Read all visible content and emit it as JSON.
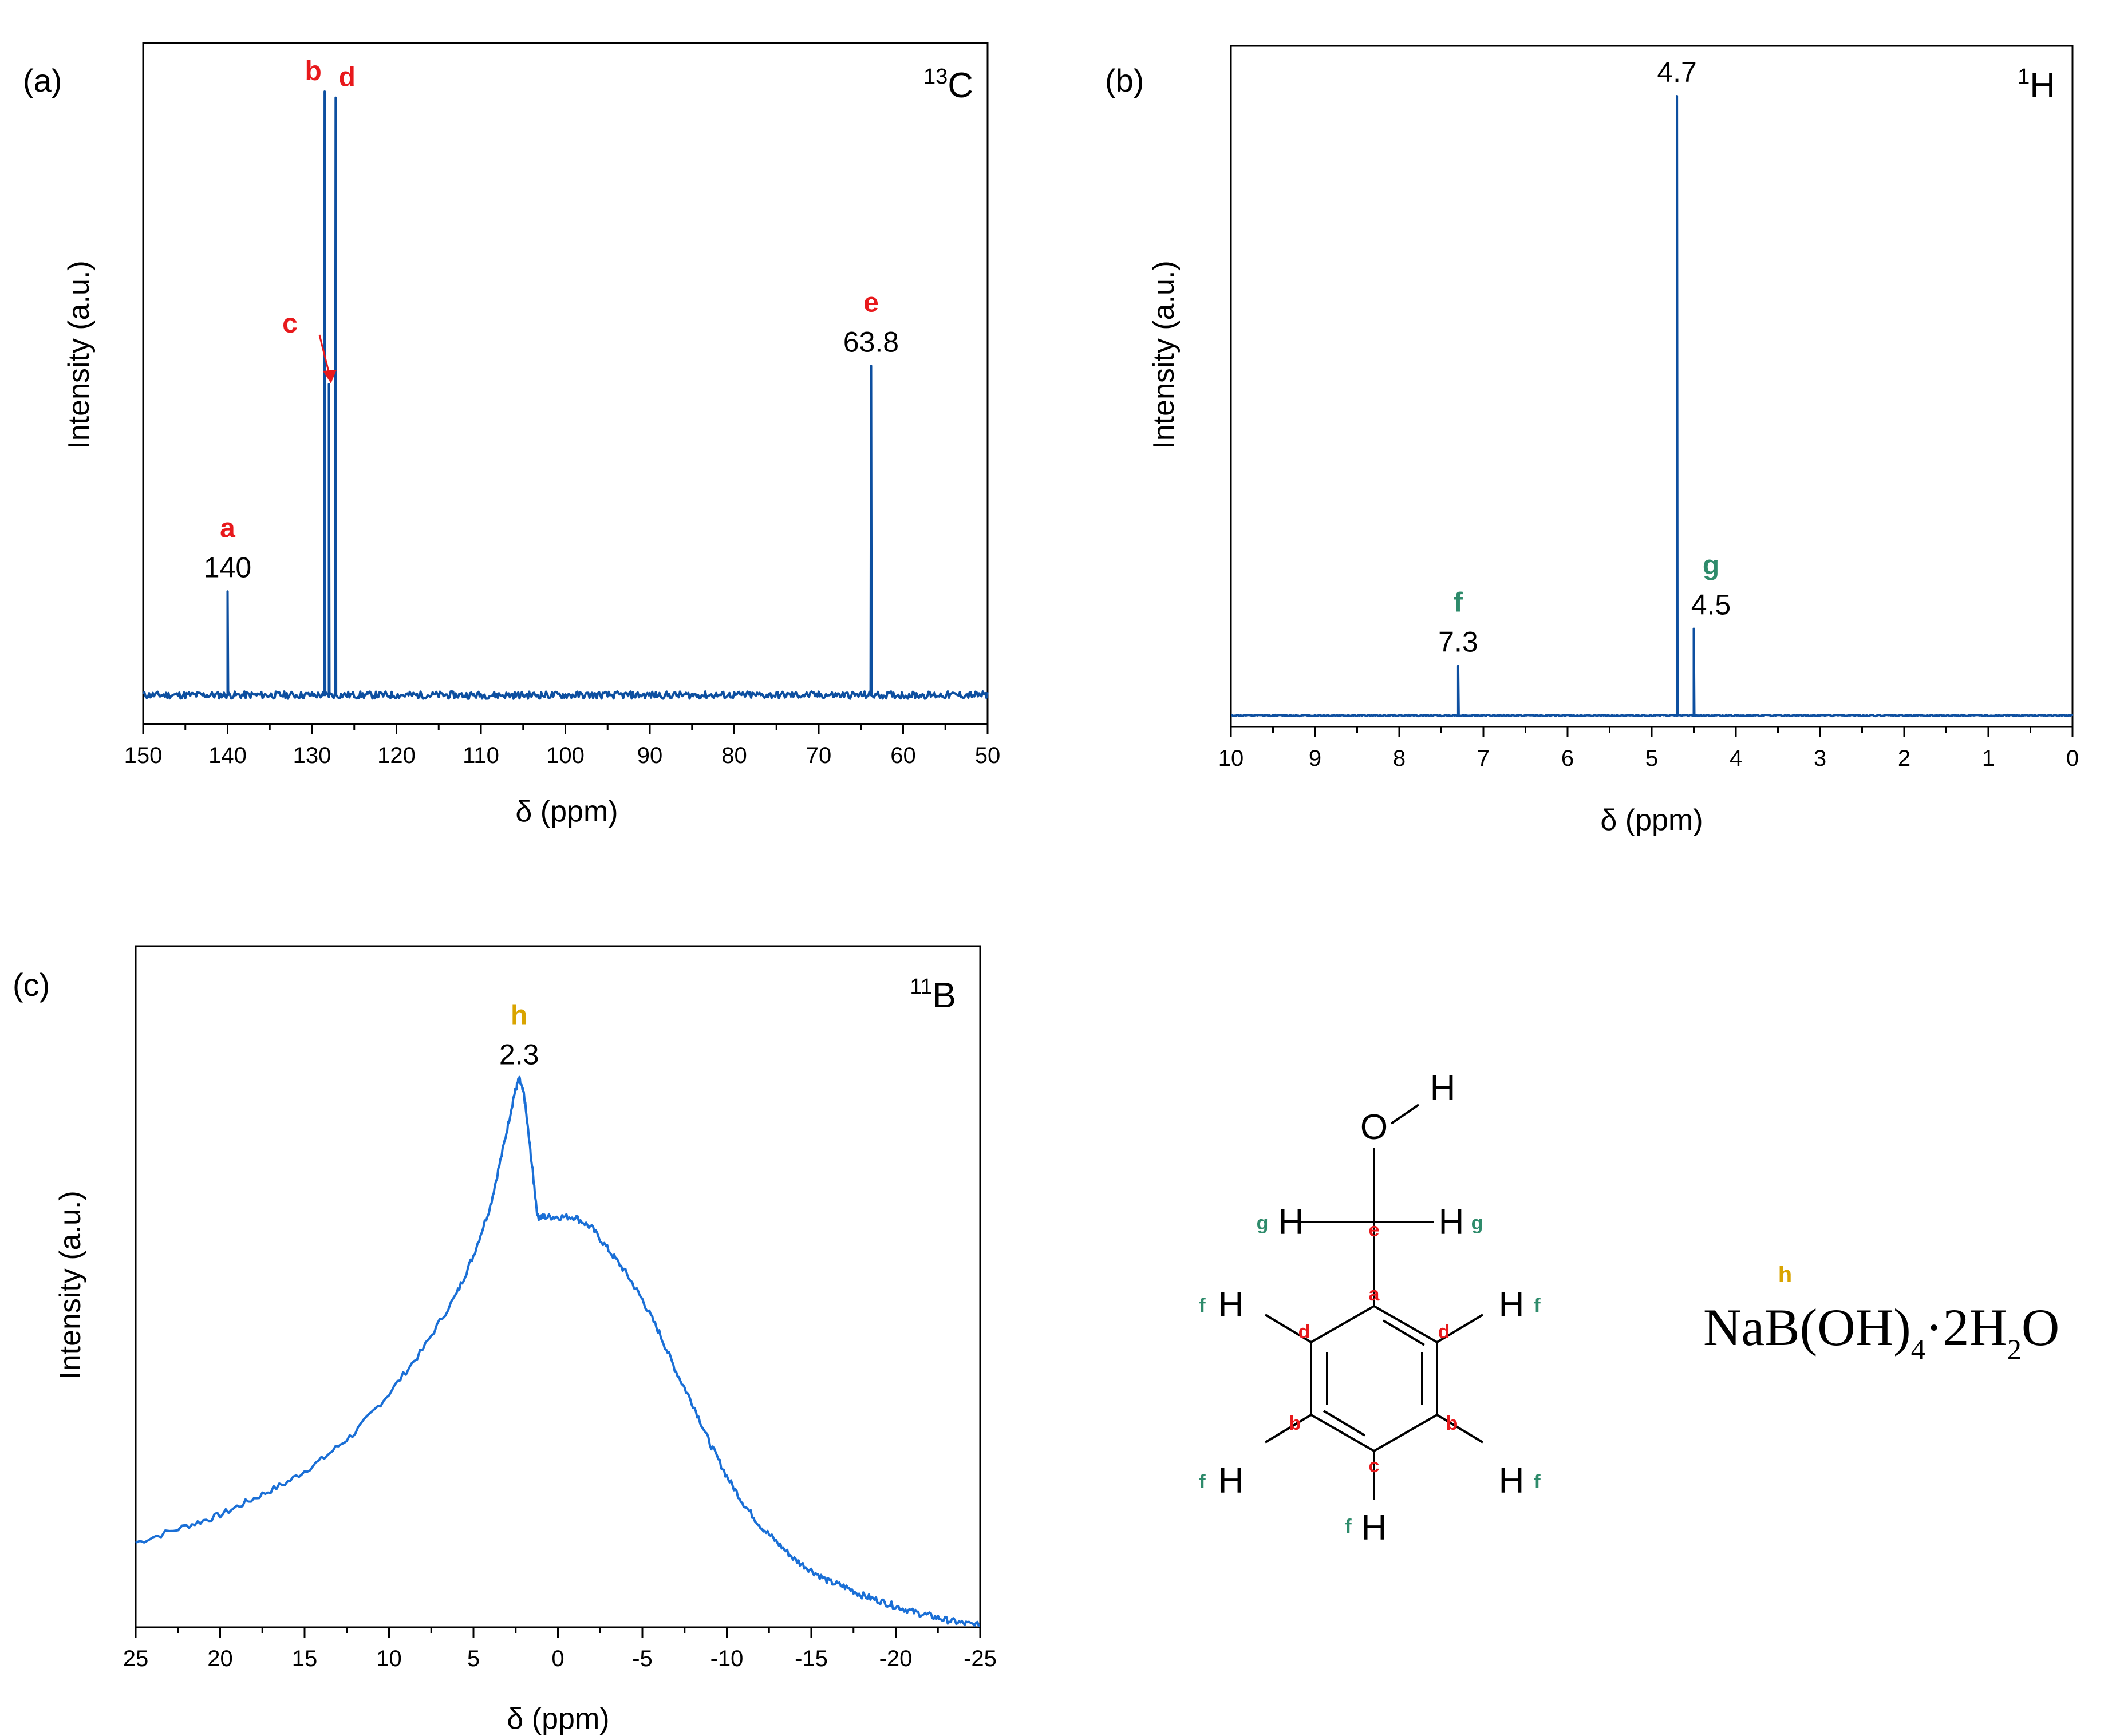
{
  "colors": {
    "line_dark": "#0d4fa0",
    "line_light": "#1a6fd6",
    "red": "#e8191c",
    "green": "#2e8b6b",
    "gold": "#d9a400"
  },
  "chart_data": [
    {
      "type": "line",
      "panel": "(a)",
      "nucleus": {
        "mass": "13",
        "element": "C"
      },
      "xlabel": "δ (ppm)",
      "ylabel": "Intensity (a.u.)",
      "xlim": [
        150,
        50
      ],
      "ylim": [
        0,
        1
      ],
      "xticks": [
        "150",
        "140",
        "130",
        "120",
        "110",
        "100",
        "90",
        "80",
        "70",
        "60",
        "50"
      ],
      "baseline": 0.01,
      "peaks": [
        {
          "x": 140.0,
          "height": 0.18,
          "letter": "a",
          "value": "140"
        },
        {
          "x": 128.5,
          "height": 1.0,
          "letter": "b",
          "value": ""
        },
        {
          "x": 128.0,
          "height": 0.52,
          "letter": "c",
          "value": ""
        },
        {
          "x": 127.2,
          "height": 0.99,
          "letter": "d",
          "value": ""
        },
        {
          "x": 63.8,
          "height": 0.55,
          "letter": "e",
          "value": "63.8"
        }
      ]
    },
    {
      "type": "line",
      "panel": "(b)",
      "nucleus": {
        "mass": "1",
        "element": "H"
      },
      "xlabel": "δ (ppm)",
      "ylabel": "Intensity (a.u.)",
      "xlim": [
        10,
        0
      ],
      "ylim": [
        0,
        1
      ],
      "xticks": [
        "10",
        "9",
        "8",
        "7",
        "6",
        "5",
        "4",
        "3",
        "2",
        "1",
        "0"
      ],
      "baseline": 0.0,
      "peaks": [
        {
          "x": 7.3,
          "height": 0.08,
          "letter": "f",
          "value": "7.3"
        },
        {
          "x": 4.7,
          "height": 1.0,
          "letter": "",
          "value": "4.7"
        },
        {
          "x": 4.5,
          "height": 0.14,
          "letter": "g",
          "value": "4.5"
        }
      ]
    },
    {
      "type": "line",
      "panel": "(c)",
      "nucleus": {
        "mass": "11",
        "element": "B"
      },
      "xlabel": "δ (ppm)",
      "ylabel": "Intensity (a.u.)",
      "xlim": [
        25,
        -25
      ],
      "ylim": [
        0,
        1
      ],
      "xticks": [
        "25",
        "20",
        "15",
        "10",
        "5",
        "0",
        "-5",
        "-10",
        "-15",
        "-20",
        "-25"
      ],
      "peaks": [
        {
          "x": 2.3,
          "height": 0.99,
          "letter": "h",
          "value": "2.3"
        }
      ],
      "profile": {
        "x": [
          25,
          22,
          20,
          18,
          16,
          14,
          12,
          10,
          8,
          6,
          5,
          4,
          3.2,
          2.6,
          2.3,
          2.0,
          1.6,
          1.2,
          0.8,
          0,
          -1,
          -2,
          -3,
          -4,
          -5,
          -6,
          -7,
          -8,
          -9,
          -10,
          -11,
          -12,
          -13,
          -14,
          -15,
          -16,
          -17,
          -18,
          -19,
          -20,
          -21,
          -22,
          -23,
          -24,
          -25
        ],
        "y": [
          0.15,
          0.18,
          0.2,
          0.23,
          0.26,
          0.3,
          0.35,
          0.42,
          0.5,
          0.6,
          0.67,
          0.76,
          0.87,
          0.96,
          0.99,
          0.96,
          0.85,
          0.74,
          0.74,
          0.74,
          0.74,
          0.72,
          0.68,
          0.64,
          0.59,
          0.53,
          0.46,
          0.4,
          0.33,
          0.27,
          0.22,
          0.18,
          0.15,
          0.12,
          0.1,
          0.08,
          0.07,
          0.055,
          0.045,
          0.035,
          0.025,
          0.018,
          0.01,
          0.004,
          0.0
        ]
      }
    }
  ],
  "structure": {
    "atoms": {
      "O": "O",
      "H_hydroxyl": "H",
      "H_g_left": "H",
      "H_g_right": "H",
      "H_f_ul": "H",
      "H_f_ur": "H",
      "H_f_ll": "H",
      "H_f_lr": "H",
      "H_f_bottom": "H"
    },
    "carbon_labels": {
      "a": "a",
      "b_left": "b",
      "b_right": "b",
      "c": "c",
      "d_left": "d",
      "d_right": "d",
      "e": "e"
    },
    "proton_labels": {
      "g_left": "g",
      "g_right": "g",
      "f_ul": "f",
      "f_ur": "f",
      "f_ll": "f",
      "f_lr": "f",
      "f_bottom": "f"
    }
  },
  "formula": {
    "label": "h",
    "parts": {
      "p1": "NaB(OH)",
      "s1": "4",
      "p2": "·2H",
      "s2": "2",
      "p3": "O"
    }
  }
}
